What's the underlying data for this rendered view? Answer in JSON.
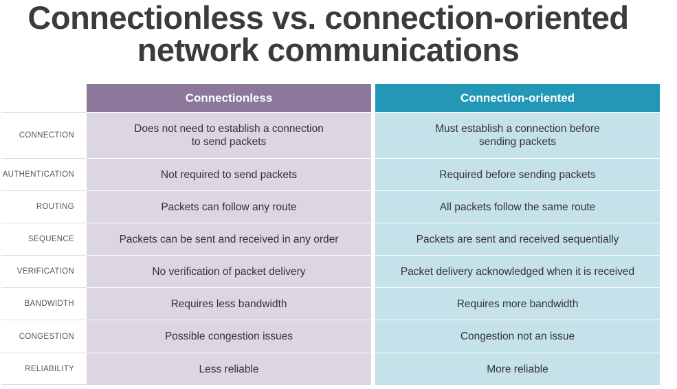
{
  "title": {
    "line1": "Connectionless vs. connection-oriented",
    "line2": "network communications"
  },
  "table": {
    "headers": [
      "Connectionless",
      "Connection-oriented"
    ],
    "rows": [
      {
        "label": "CONNECTION",
        "connectionless": "Does not need to establish a connection\nto send packets",
        "connection_oriented": "Must establish a connection before\nsending packets"
      },
      {
        "label": "AUTHENTICATION",
        "connectionless": "Not required to send packets",
        "connection_oriented": "Required before sending packets"
      },
      {
        "label": "ROUTING",
        "connectionless": "Packets can follow any route",
        "connection_oriented": "All packets follow the same route"
      },
      {
        "label": "SEQUENCE",
        "connectionless": "Packets can be sent and received in any order",
        "connection_oriented": "Packets are sent and received sequentially"
      },
      {
        "label": "VERIFICATION",
        "connectionless": "No verification of packet delivery",
        "connection_oriented": "Packet delivery acknowledged when it is received"
      },
      {
        "label": "BANDWIDTH",
        "connectionless": "Requires less bandwidth",
        "connection_oriented": "Requires more bandwidth"
      },
      {
        "label": "CONGESTION",
        "connectionless": "Possible congestion issues",
        "connection_oriented": "Congestion not an issue"
      },
      {
        "label": "RELIABILITY",
        "connectionless": "Less reliable",
        "connection_oriented": "More reliable"
      }
    ]
  },
  "colors": {
    "connectionless_header": "#8b789b",
    "connection_oriented_header": "#2397b6",
    "connectionless_cell": "#dcd5e2",
    "connection_oriented_cell": "#c5e1ea"
  }
}
